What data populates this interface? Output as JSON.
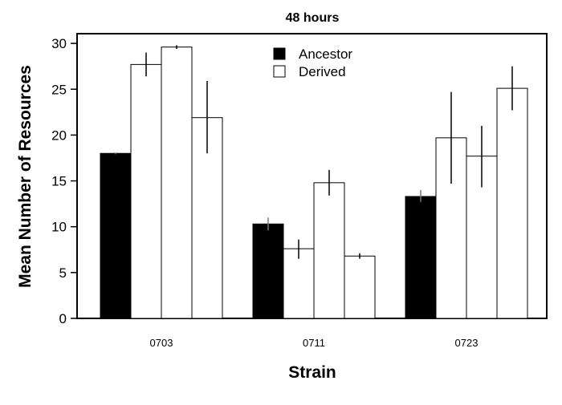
{
  "chart_data": {
    "type": "bar",
    "title": "48 hours",
    "xlabel": "Strain",
    "ylabel": "Mean Number of Resources",
    "ylim": [
      0,
      30
    ],
    "yticks": [
      "0",
      "5",
      "10",
      "15",
      "20",
      "25",
      "30"
    ],
    "legend_position": "top-center",
    "legend": [
      {
        "label": "Ancestor",
        "color": "#000000"
      },
      {
        "label": "Derived",
        "color": "#ffffff"
      }
    ],
    "groups": [
      {
        "category": "0703",
        "bars": [
          {
            "kind": "Ancestor",
            "value": 18.0,
            "err_low": 17.9,
            "err_high": 18.1
          },
          {
            "kind": "Derived",
            "value": 27.7,
            "err_low": 26.4,
            "err_high": 29.0
          },
          {
            "kind": "Derived",
            "value": 29.6,
            "err_low": 29.4,
            "err_high": 29.8
          },
          {
            "kind": "Derived",
            "value": 21.9,
            "err_low": 18.0,
            "err_high": 25.9
          }
        ]
      },
      {
        "category": "0711",
        "bars": [
          {
            "kind": "Ancestor",
            "value": 10.3,
            "err_low": 9.6,
            "err_high": 11.0
          },
          {
            "kind": "Derived",
            "value": 7.6,
            "err_low": 6.5,
            "err_high": 8.6
          },
          {
            "kind": "Derived",
            "value": 14.8,
            "err_low": 13.4,
            "err_high": 16.2
          },
          {
            "kind": "Derived",
            "value": 6.8,
            "err_low": 6.5,
            "err_high": 7.1
          }
        ]
      },
      {
        "category": "0723",
        "bars": [
          {
            "kind": "Ancestor",
            "value": 13.3,
            "err_low": 12.7,
            "err_high": 14.0
          },
          {
            "kind": "Derived",
            "value": 19.7,
            "err_low": 14.7,
            "err_high": 24.7
          },
          {
            "kind": "Derived",
            "value": 17.7,
            "err_low": 14.3,
            "err_high": 21.0
          },
          {
            "kind": "Derived",
            "value": 25.1,
            "err_low": 22.7,
            "err_high": 27.5
          }
        ]
      }
    ]
  }
}
